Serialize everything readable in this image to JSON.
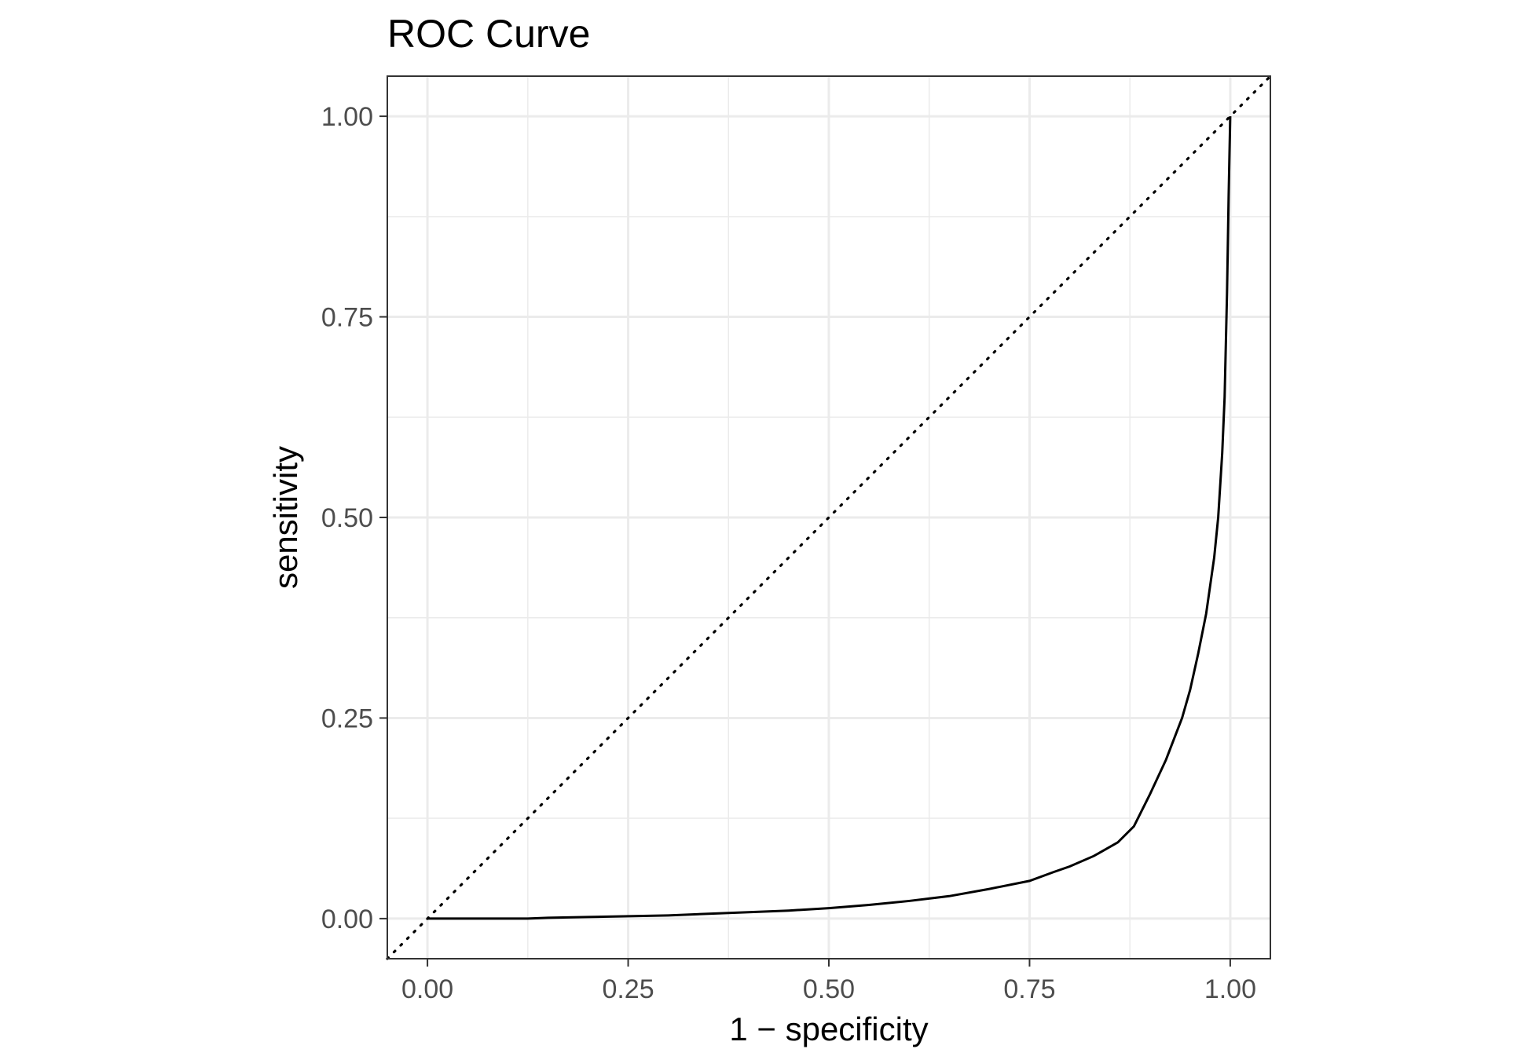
{
  "chart_data": {
    "type": "line",
    "title": "ROC Curve",
    "xlabel": "1 − specificity",
    "ylabel": "sensitivity",
    "xlim": [
      -0.05,
      1.05
    ],
    "ylim": [
      -0.05,
      1.05
    ],
    "x_ticks": [
      "0.00",
      "0.25",
      "0.50",
      "0.75",
      "1.00"
    ],
    "y_ticks": [
      "0.00",
      "0.25",
      "0.50",
      "0.75",
      "1.00"
    ],
    "grid": true,
    "reference_line": {
      "style": "dotted",
      "from": [
        0,
        0
      ],
      "to": [
        1,
        1
      ]
    },
    "series": [
      {
        "x": [
          0.0,
          0.125,
          0.15,
          0.2,
          0.25,
          0.3,
          0.35,
          0.4,
          0.45,
          0.5,
          0.55,
          0.6,
          0.65,
          0.7,
          0.75,
          0.78,
          0.8,
          0.83,
          0.86,
          0.88,
          0.9,
          0.92,
          0.94,
          0.95,
          0.96,
          0.97,
          0.98,
          0.985,
          0.99,
          0.993,
          0.996,
          0.998,
          1.0
        ],
        "y": [
          0.0,
          0.0,
          0.001,
          0.002,
          0.003,
          0.004,
          0.006,
          0.008,
          0.01,
          0.013,
          0.017,
          0.022,
          0.028,
          0.037,
          0.047,
          0.058,
          0.065,
          0.078,
          0.095,
          0.115,
          0.155,
          0.198,
          0.25,
          0.285,
          0.33,
          0.38,
          0.45,
          0.5,
          0.58,
          0.65,
          0.78,
          0.9,
          1.0
        ]
      }
    ]
  }
}
